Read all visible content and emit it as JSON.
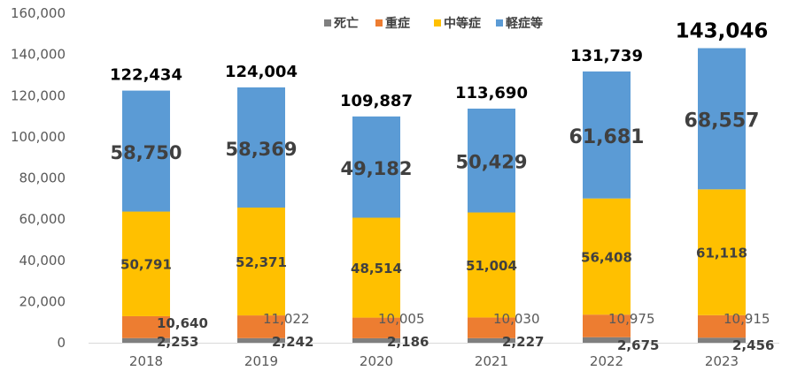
{
  "chart_data": {
    "type": "bar",
    "stacked": true,
    "categories": [
      "2018",
      "2019",
      "2020",
      "2021",
      "2022",
      "2023"
    ],
    "series": [
      {
        "name": "死亡",
        "color": "#7f7f7f",
        "values": [
          2253,
          2242,
          2186,
          2227,
          2675,
          2456
        ]
      },
      {
        "name": "重症",
        "color": "#ed7d31",
        "values": [
          10640,
          11022,
          10005,
          10030,
          10975,
          10915
        ]
      },
      {
        "name": "中等症",
        "color": "#ffc000",
        "values": [
          50791,
          52371,
          48514,
          51004,
          56408,
          61118
        ]
      },
      {
        "name": "軽症等",
        "color": "#5b9bd5",
        "values": [
          58750,
          58369,
          49182,
          50429,
          61681,
          68557
        ]
      }
    ],
    "totals": [
      122434,
      124004,
      109887,
      113690,
      131739,
      143046
    ],
    "labels": {
      "death": [
        "2,253",
        "2,242",
        "2,186",
        "2,227",
        "2,675",
        "2,456"
      ],
      "severe": [
        "10,640",
        "11,022",
        "10,005",
        "10,030",
        "10,975",
        "10,915"
      ],
      "moderate": [
        "50,791",
        "52,371",
        "48,514",
        "51,004",
        "56,408",
        "61,118"
      ],
      "mild": [
        "58,750",
        "58,369",
        "49,182",
        "50,429",
        "61,681",
        "68,557"
      ],
      "total": [
        "122,434",
        "124,004",
        "109,887",
        "113,690",
        "131,739",
        "143,046"
      ]
    },
    "y_ticks": [
      "0",
      "20,000",
      "40,000",
      "60,000",
      "80,000",
      "100,000",
      "120,000",
      "140,000",
      "160,000"
    ],
    "ylim": [
      0,
      160000
    ],
    "legend_position": "top",
    "title": "",
    "xlabel": "",
    "ylabel": ""
  }
}
